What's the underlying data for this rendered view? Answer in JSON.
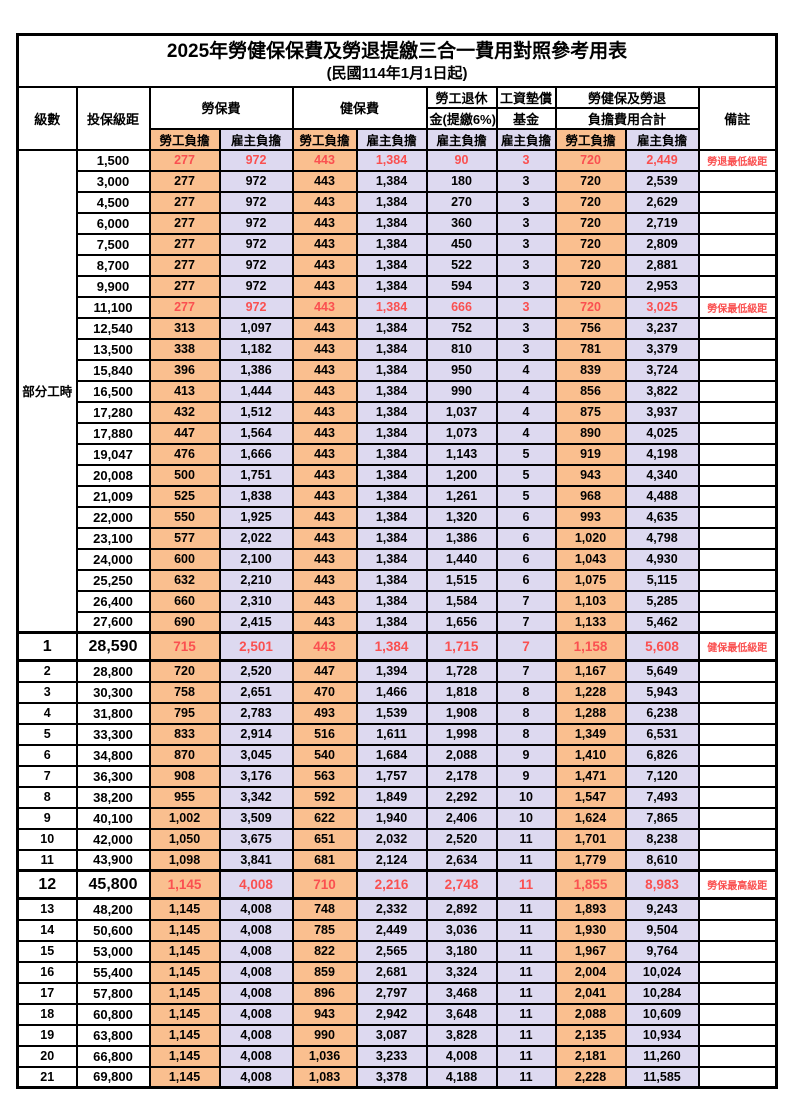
{
  "title": "2025年勞健保保費及勞退提繳三合一費用對照參考用表",
  "subtitle": "(民國114年1月1日起)",
  "colors": {
    "employee_bg": "#FABF8F",
    "employer_bg": "#DDD9F0",
    "highlight_text": "#FA5050",
    "border": "#000000"
  },
  "header": {
    "level": "級數",
    "bracket": "投保級距",
    "labor_fee": "勞保費",
    "health_fee": "健保費",
    "pension_line1": "勞工退休",
    "pension_line2": "金(提繳6%)",
    "fund_line1": "工資墊償",
    "fund_line2": "基金",
    "total_line1": "勞健保及勞退",
    "total_line2": "負擔費用合計",
    "note": "備註",
    "employee": "勞工負擔",
    "employer": "雇主負擔"
  },
  "table": {
    "parttime_label": "部分工時",
    "parttime_span": 23,
    "columns": [
      {
        "key": "bracket",
        "class": "bracket"
      },
      {
        "key": "labor_emp",
        "class": "emp"
      },
      {
        "key": "labor_er",
        "class": "er"
      },
      {
        "key": "health_emp",
        "class": "emp"
      },
      {
        "key": "health_er",
        "class": "er"
      },
      {
        "key": "pension_er",
        "class": "er"
      },
      {
        "key": "fund_er",
        "class": "er"
      },
      {
        "key": "total_emp",
        "class": "emp"
      },
      {
        "key": "total_er",
        "class": "er"
      },
      {
        "key": "note",
        "class": "note"
      }
    ],
    "rows": [
      {
        "level": null,
        "bracket": "1,500",
        "labor_emp": "277",
        "labor_er": "972",
        "health_emp": "443",
        "health_er": "1,384",
        "pension_er": "90",
        "fund_er": "3",
        "total_emp": "720",
        "total_er": "2,449",
        "note": "勞退最低級距",
        "highlight": true,
        "emphasis": false
      },
      {
        "level": null,
        "bracket": "3,000",
        "labor_emp": "277",
        "labor_er": "972",
        "health_emp": "443",
        "health_er": "1,384",
        "pension_er": "180",
        "fund_er": "3",
        "total_emp": "720",
        "total_er": "2,539",
        "note": "",
        "highlight": false,
        "emphasis": false
      },
      {
        "level": null,
        "bracket": "4,500",
        "labor_emp": "277",
        "labor_er": "972",
        "health_emp": "443",
        "health_er": "1,384",
        "pension_er": "270",
        "fund_er": "3",
        "total_emp": "720",
        "total_er": "2,629",
        "note": "",
        "highlight": false,
        "emphasis": false
      },
      {
        "level": null,
        "bracket": "6,000",
        "labor_emp": "277",
        "labor_er": "972",
        "health_emp": "443",
        "health_er": "1,384",
        "pension_er": "360",
        "fund_er": "3",
        "total_emp": "720",
        "total_er": "2,719",
        "note": "",
        "highlight": false,
        "emphasis": false
      },
      {
        "level": null,
        "bracket": "7,500",
        "labor_emp": "277",
        "labor_er": "972",
        "health_emp": "443",
        "health_er": "1,384",
        "pension_er": "450",
        "fund_er": "3",
        "total_emp": "720",
        "total_er": "2,809",
        "note": "",
        "highlight": false,
        "emphasis": false
      },
      {
        "level": null,
        "bracket": "8,700",
        "labor_emp": "277",
        "labor_er": "972",
        "health_emp": "443",
        "health_er": "1,384",
        "pension_er": "522",
        "fund_er": "3",
        "total_emp": "720",
        "total_er": "2,881",
        "note": "",
        "highlight": false,
        "emphasis": false
      },
      {
        "level": null,
        "bracket": "9,900",
        "labor_emp": "277",
        "labor_er": "972",
        "health_emp": "443",
        "health_er": "1,384",
        "pension_er": "594",
        "fund_er": "3",
        "total_emp": "720",
        "total_er": "2,953",
        "note": "",
        "highlight": false,
        "emphasis": false
      },
      {
        "level": null,
        "bracket": "11,100",
        "labor_emp": "277",
        "labor_er": "972",
        "health_emp": "443",
        "health_er": "1,384",
        "pension_er": "666",
        "fund_er": "3",
        "total_emp": "720",
        "total_er": "3,025",
        "note": "勞保最低級距",
        "highlight": true,
        "emphasis": false
      },
      {
        "level": null,
        "bracket": "12,540",
        "labor_emp": "313",
        "labor_er": "1,097",
        "health_emp": "443",
        "health_er": "1,384",
        "pension_er": "752",
        "fund_er": "3",
        "total_emp": "756",
        "total_er": "3,237",
        "note": "",
        "highlight": false,
        "emphasis": false
      },
      {
        "level": null,
        "bracket": "13,500",
        "labor_emp": "338",
        "labor_er": "1,182",
        "health_emp": "443",
        "health_er": "1,384",
        "pension_er": "810",
        "fund_er": "3",
        "total_emp": "781",
        "total_er": "3,379",
        "note": "",
        "highlight": false,
        "emphasis": false
      },
      {
        "level": null,
        "bracket": "15,840",
        "labor_emp": "396",
        "labor_er": "1,386",
        "health_emp": "443",
        "health_er": "1,384",
        "pension_er": "950",
        "fund_er": "4",
        "total_emp": "839",
        "total_er": "3,724",
        "note": "",
        "highlight": false,
        "emphasis": false
      },
      {
        "level": null,
        "bracket": "16,500",
        "labor_emp": "413",
        "labor_er": "1,444",
        "health_emp": "443",
        "health_er": "1,384",
        "pension_er": "990",
        "fund_er": "4",
        "total_emp": "856",
        "total_er": "3,822",
        "note": "",
        "highlight": false,
        "emphasis": false
      },
      {
        "level": null,
        "bracket": "17,280",
        "labor_emp": "432",
        "labor_er": "1,512",
        "health_emp": "443",
        "health_er": "1,384",
        "pension_er": "1,037",
        "fund_er": "4",
        "total_emp": "875",
        "total_er": "3,937",
        "note": "",
        "highlight": false,
        "emphasis": false
      },
      {
        "level": null,
        "bracket": "17,880",
        "labor_emp": "447",
        "labor_er": "1,564",
        "health_emp": "443",
        "health_er": "1,384",
        "pension_er": "1,073",
        "fund_er": "4",
        "total_emp": "890",
        "total_er": "4,025",
        "note": "",
        "highlight": false,
        "emphasis": false
      },
      {
        "level": null,
        "bracket": "19,047",
        "labor_emp": "476",
        "labor_er": "1,666",
        "health_emp": "443",
        "health_er": "1,384",
        "pension_er": "1,143",
        "fund_er": "5",
        "total_emp": "919",
        "total_er": "4,198",
        "note": "",
        "highlight": false,
        "emphasis": false
      },
      {
        "level": null,
        "bracket": "20,008",
        "labor_emp": "500",
        "labor_er": "1,751",
        "health_emp": "443",
        "health_er": "1,384",
        "pension_er": "1,200",
        "fund_er": "5",
        "total_emp": "943",
        "total_er": "4,340",
        "note": "",
        "highlight": false,
        "emphasis": false
      },
      {
        "level": null,
        "bracket": "21,009",
        "labor_emp": "525",
        "labor_er": "1,838",
        "health_emp": "443",
        "health_er": "1,384",
        "pension_er": "1,261",
        "fund_er": "5",
        "total_emp": "968",
        "total_er": "4,488",
        "note": "",
        "highlight": false,
        "emphasis": false
      },
      {
        "level": null,
        "bracket": "22,000",
        "labor_emp": "550",
        "labor_er": "1,925",
        "health_emp": "443",
        "health_er": "1,384",
        "pension_er": "1,320",
        "fund_er": "6",
        "total_emp": "993",
        "total_er": "4,635",
        "note": "",
        "highlight": false,
        "emphasis": false
      },
      {
        "level": null,
        "bracket": "23,100",
        "labor_emp": "577",
        "labor_er": "2,022",
        "health_emp": "443",
        "health_er": "1,384",
        "pension_er": "1,386",
        "fund_er": "6",
        "total_emp": "1,020",
        "total_er": "4,798",
        "note": "",
        "highlight": false,
        "emphasis": false
      },
      {
        "level": null,
        "bracket": "24,000",
        "labor_emp": "600",
        "labor_er": "2,100",
        "health_emp": "443",
        "health_er": "1,384",
        "pension_er": "1,440",
        "fund_er": "6",
        "total_emp": "1,043",
        "total_er": "4,930",
        "note": "",
        "highlight": false,
        "emphasis": false
      },
      {
        "level": null,
        "bracket": "25,250",
        "labor_emp": "632",
        "labor_er": "2,210",
        "health_emp": "443",
        "health_er": "1,384",
        "pension_er": "1,515",
        "fund_er": "6",
        "total_emp": "1,075",
        "total_er": "5,115",
        "note": "",
        "highlight": false,
        "emphasis": false
      },
      {
        "level": null,
        "bracket": "26,400",
        "labor_emp": "660",
        "labor_er": "2,310",
        "health_emp": "443",
        "health_er": "1,384",
        "pension_er": "1,584",
        "fund_er": "7",
        "total_emp": "1,103",
        "total_er": "5,285",
        "note": "",
        "highlight": false,
        "emphasis": false
      },
      {
        "level": null,
        "bracket": "27,600",
        "labor_emp": "690",
        "labor_er": "2,415",
        "health_emp": "443",
        "health_er": "1,384",
        "pension_er": "1,656",
        "fund_er": "7",
        "total_emp": "1,133",
        "total_er": "5,462",
        "note": "",
        "highlight": false,
        "emphasis": false
      },
      {
        "level": "1",
        "bracket": "28,590",
        "labor_emp": "715",
        "labor_er": "2,501",
        "health_emp": "443",
        "health_er": "1,384",
        "pension_er": "1,715",
        "fund_er": "7",
        "total_emp": "1,158",
        "total_er": "5,608",
        "note": "健保最低級距",
        "highlight": true,
        "emphasis": true
      },
      {
        "level": "2",
        "bracket": "28,800",
        "labor_emp": "720",
        "labor_er": "2,520",
        "health_emp": "447",
        "health_er": "1,394",
        "pension_er": "1,728",
        "fund_er": "7",
        "total_emp": "1,167",
        "total_er": "5,649",
        "note": "",
        "highlight": false,
        "emphasis": false
      },
      {
        "level": "3",
        "bracket": "30,300",
        "labor_emp": "758",
        "labor_er": "2,651",
        "health_emp": "470",
        "health_er": "1,466",
        "pension_er": "1,818",
        "fund_er": "8",
        "total_emp": "1,228",
        "total_er": "5,943",
        "note": "",
        "highlight": false,
        "emphasis": false
      },
      {
        "level": "4",
        "bracket": "31,800",
        "labor_emp": "795",
        "labor_er": "2,783",
        "health_emp": "493",
        "health_er": "1,539",
        "pension_er": "1,908",
        "fund_er": "8",
        "total_emp": "1,288",
        "total_er": "6,238",
        "note": "",
        "highlight": false,
        "emphasis": false
      },
      {
        "level": "5",
        "bracket": "33,300",
        "labor_emp": "833",
        "labor_er": "2,914",
        "health_emp": "516",
        "health_er": "1,611",
        "pension_er": "1,998",
        "fund_er": "8",
        "total_emp": "1,349",
        "total_er": "6,531",
        "note": "",
        "highlight": false,
        "emphasis": false
      },
      {
        "level": "6",
        "bracket": "34,800",
        "labor_emp": "870",
        "labor_er": "3,045",
        "health_emp": "540",
        "health_er": "1,684",
        "pension_er": "2,088",
        "fund_er": "9",
        "total_emp": "1,410",
        "total_er": "6,826",
        "note": "",
        "highlight": false,
        "emphasis": false
      },
      {
        "level": "7",
        "bracket": "36,300",
        "labor_emp": "908",
        "labor_er": "3,176",
        "health_emp": "563",
        "health_er": "1,757",
        "pension_er": "2,178",
        "fund_er": "9",
        "total_emp": "1,471",
        "total_er": "7,120",
        "note": "",
        "highlight": false,
        "emphasis": false
      },
      {
        "level": "8",
        "bracket": "38,200",
        "labor_emp": "955",
        "labor_er": "3,342",
        "health_emp": "592",
        "health_er": "1,849",
        "pension_er": "2,292",
        "fund_er": "10",
        "total_emp": "1,547",
        "total_er": "7,493",
        "note": "",
        "highlight": false,
        "emphasis": false
      },
      {
        "level": "9",
        "bracket": "40,100",
        "labor_emp": "1,002",
        "labor_er": "3,509",
        "health_emp": "622",
        "health_er": "1,940",
        "pension_er": "2,406",
        "fund_er": "10",
        "total_emp": "1,624",
        "total_er": "7,865",
        "note": "",
        "highlight": false,
        "emphasis": false
      },
      {
        "level": "10",
        "bracket": "42,000",
        "labor_emp": "1,050",
        "labor_er": "3,675",
        "health_emp": "651",
        "health_er": "2,032",
        "pension_er": "2,520",
        "fund_er": "11",
        "total_emp": "1,701",
        "total_er": "8,238",
        "note": "",
        "highlight": false,
        "emphasis": false
      },
      {
        "level": "11",
        "bracket": "43,900",
        "labor_emp": "1,098",
        "labor_er": "3,841",
        "health_emp": "681",
        "health_er": "2,124",
        "pension_er": "2,634",
        "fund_er": "11",
        "total_emp": "1,779",
        "total_er": "8,610",
        "note": "",
        "highlight": false,
        "emphasis": false
      },
      {
        "level": "12",
        "bracket": "45,800",
        "labor_emp": "1,145",
        "labor_er": "4,008",
        "health_emp": "710",
        "health_er": "2,216",
        "pension_er": "2,748",
        "fund_er": "11",
        "total_emp": "1,855",
        "total_er": "8,983",
        "note": "勞保最高級距",
        "highlight": true,
        "emphasis": true
      },
      {
        "level": "13",
        "bracket": "48,200",
        "labor_emp": "1,145",
        "labor_er": "4,008",
        "health_emp": "748",
        "health_er": "2,332",
        "pension_er": "2,892",
        "fund_er": "11",
        "total_emp": "1,893",
        "total_er": "9,243",
        "note": "",
        "highlight": false,
        "emphasis": false
      },
      {
        "level": "14",
        "bracket": "50,600",
        "labor_emp": "1,145",
        "labor_er": "4,008",
        "health_emp": "785",
        "health_er": "2,449",
        "pension_er": "3,036",
        "fund_er": "11",
        "total_emp": "1,930",
        "total_er": "9,504",
        "note": "",
        "highlight": false,
        "emphasis": false
      },
      {
        "level": "15",
        "bracket": "53,000",
        "labor_emp": "1,145",
        "labor_er": "4,008",
        "health_emp": "822",
        "health_er": "2,565",
        "pension_er": "3,180",
        "fund_er": "11",
        "total_emp": "1,967",
        "total_er": "9,764",
        "note": "",
        "highlight": false,
        "emphasis": false
      },
      {
        "level": "16",
        "bracket": "55,400",
        "labor_emp": "1,145",
        "labor_er": "4,008",
        "health_emp": "859",
        "health_er": "2,681",
        "pension_er": "3,324",
        "fund_er": "11",
        "total_emp": "2,004",
        "total_er": "10,024",
        "note": "",
        "highlight": false,
        "emphasis": false
      },
      {
        "level": "17",
        "bracket": "57,800",
        "labor_emp": "1,145",
        "labor_er": "4,008",
        "health_emp": "896",
        "health_er": "2,797",
        "pension_er": "3,468",
        "fund_er": "11",
        "total_emp": "2,041",
        "total_er": "10,284",
        "note": "",
        "highlight": false,
        "emphasis": false
      },
      {
        "level": "18",
        "bracket": "60,800",
        "labor_emp": "1,145",
        "labor_er": "4,008",
        "health_emp": "943",
        "health_er": "2,942",
        "pension_er": "3,648",
        "fund_er": "11",
        "total_emp": "2,088",
        "total_er": "10,609",
        "note": "",
        "highlight": false,
        "emphasis": false
      },
      {
        "level": "19",
        "bracket": "63,800",
        "labor_emp": "1,145",
        "labor_er": "4,008",
        "health_emp": "990",
        "health_er": "3,087",
        "pension_er": "3,828",
        "fund_er": "11",
        "total_emp": "2,135",
        "total_er": "10,934",
        "note": "",
        "highlight": false,
        "emphasis": false
      },
      {
        "level": "20",
        "bracket": "66,800",
        "labor_emp": "1,145",
        "labor_er": "4,008",
        "health_emp": "1,036",
        "health_er": "3,233",
        "pension_er": "4,008",
        "fund_er": "11",
        "total_emp": "2,181",
        "total_er": "11,260",
        "note": "",
        "highlight": false,
        "emphasis": false
      },
      {
        "level": "21",
        "bracket": "69,800",
        "labor_emp": "1,145",
        "labor_er": "4,008",
        "health_emp": "1,083",
        "health_er": "3,378",
        "pension_er": "4,188",
        "fund_er": "11",
        "total_emp": "2,228",
        "total_er": "11,585",
        "note": "",
        "highlight": false,
        "emphasis": false
      }
    ]
  }
}
